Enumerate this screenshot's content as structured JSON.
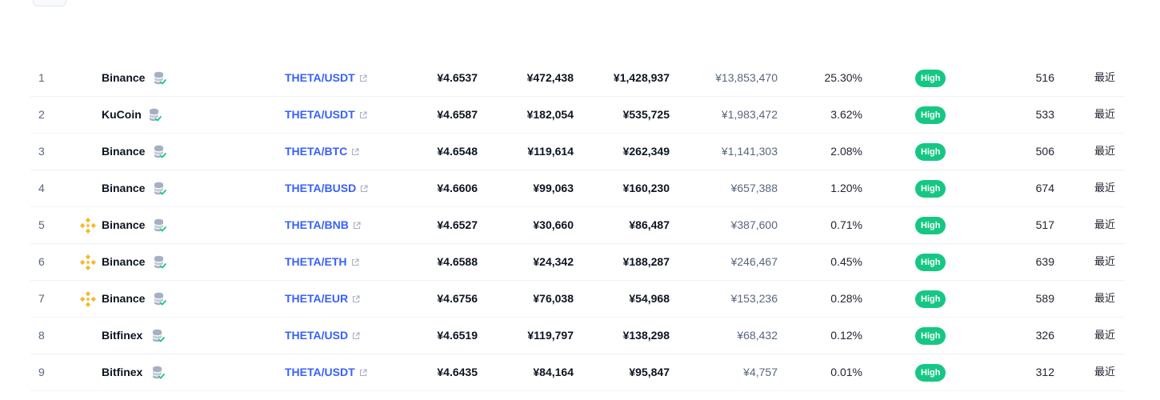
{
  "rows": [
    {
      "rank": "1",
      "logo": false,
      "exchange": "Binance",
      "pair": "THETA/USDT",
      "price": "¥4.6537",
      "depth_plus": "¥472,438",
      "depth_minus": "¥1,428,937",
      "volume": "¥13,853,470",
      "volume_pct": "25.30%",
      "confidence": "High",
      "liquidity": "516",
      "updated": "最近"
    },
    {
      "rank": "2",
      "logo": false,
      "exchange": "KuCoin",
      "pair": "THETA/USDT",
      "price": "¥4.6587",
      "depth_plus": "¥182,054",
      "depth_minus": "¥535,725",
      "volume": "¥1,983,472",
      "volume_pct": "3.62%",
      "confidence": "High",
      "liquidity": "533",
      "updated": "最近"
    },
    {
      "rank": "3",
      "logo": false,
      "exchange": "Binance",
      "pair": "THETA/BTC",
      "price": "¥4.6548",
      "depth_plus": "¥119,614",
      "depth_minus": "¥262,349",
      "volume": "¥1,141,303",
      "volume_pct": "2.08%",
      "confidence": "High",
      "liquidity": "506",
      "updated": "最近"
    },
    {
      "rank": "4",
      "logo": false,
      "exchange": "Binance",
      "pair": "THETA/BUSD",
      "price": "¥4.6606",
      "depth_plus": "¥99,063",
      "depth_minus": "¥160,230",
      "volume": "¥657,388",
      "volume_pct": "1.20%",
      "confidence": "High",
      "liquidity": "674",
      "updated": "最近"
    },
    {
      "rank": "5",
      "logo": true,
      "exchange": "Binance",
      "pair": "THETA/BNB",
      "price": "¥4.6527",
      "depth_plus": "¥30,660",
      "depth_minus": "¥86,487",
      "volume": "¥387,600",
      "volume_pct": "0.71%",
      "confidence": "High",
      "liquidity": "517",
      "updated": "最近"
    },
    {
      "rank": "6",
      "logo": true,
      "exchange": "Binance",
      "pair": "THETA/ETH",
      "price": "¥4.6588",
      "depth_plus": "¥24,342",
      "depth_minus": "¥188,287",
      "volume": "¥246,467",
      "volume_pct": "0.45%",
      "confidence": "High",
      "liquidity": "639",
      "updated": "最近"
    },
    {
      "rank": "7",
      "logo": true,
      "exchange": "Binance",
      "pair": "THETA/EUR",
      "price": "¥4.6756",
      "depth_plus": "¥76,038",
      "depth_minus": "¥54,968",
      "volume": "¥153,236",
      "volume_pct": "0.28%",
      "confidence": "High",
      "liquidity": "589",
      "updated": "最近"
    },
    {
      "rank": "8",
      "logo": false,
      "exchange": "Bitfinex",
      "pair": "THETA/USD",
      "price": "¥4.6519",
      "depth_plus": "¥119,797",
      "depth_minus": "¥138,298",
      "volume": "¥68,432",
      "volume_pct": "0.12%",
      "confidence": "High",
      "liquidity": "326",
      "updated": "最近"
    },
    {
      "rank": "9",
      "logo": false,
      "exchange": "Bitfinex",
      "pair": "THETA/USDT",
      "price": "¥4.6435",
      "depth_plus": "¥84,164",
      "depth_minus": "¥95,847",
      "volume": "¥4,757",
      "volume_pct": "0.01%",
      "confidence": "High",
      "liquidity": "312",
      "updated": "最近"
    }
  ],
  "icons": {
    "exchange_logo": "binance-logo-icon",
    "verified": "verified-database-icon",
    "external": "external-link-icon"
  },
  "colors": {
    "pair_link": "#3861fb",
    "badge_high": "#16c784",
    "binance_gold": "#f3ba2f",
    "check_green": "#16c784"
  }
}
